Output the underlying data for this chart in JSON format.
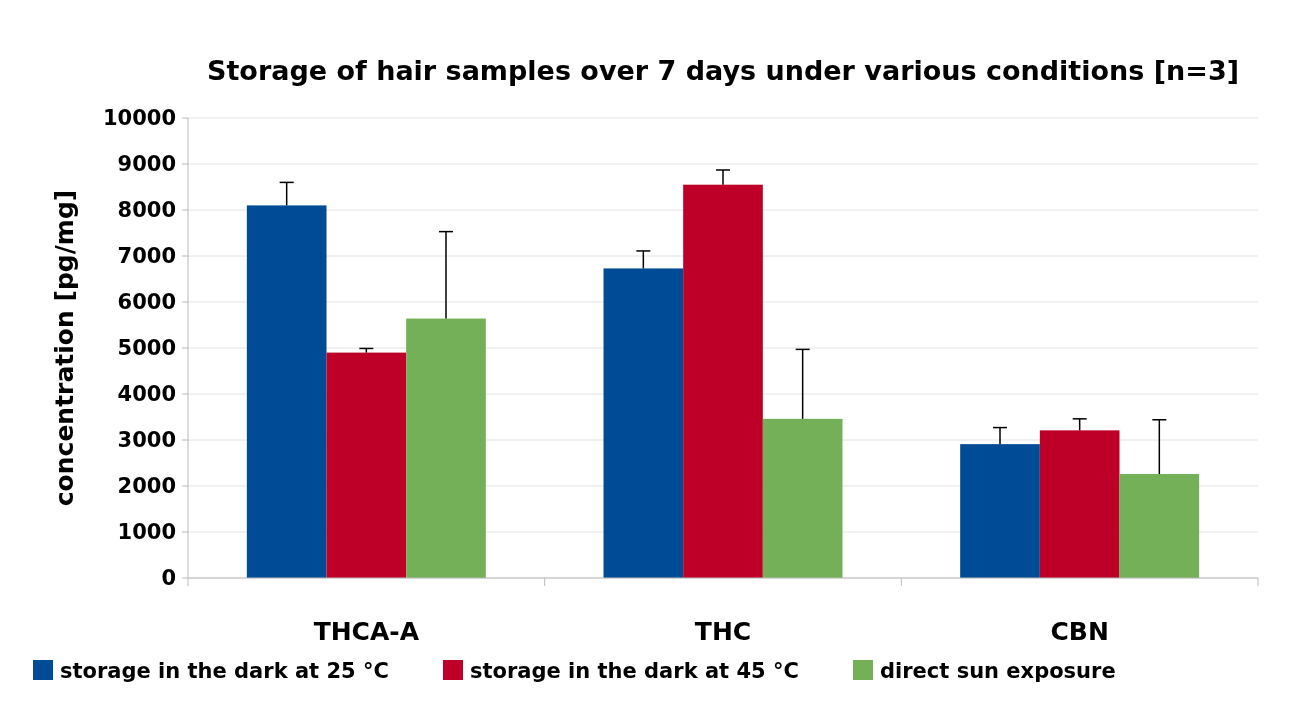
{
  "chart_data": {
    "type": "bar",
    "title": "Storage of hair samples over 7 days under various conditions [n=3]",
    "ylabel": "concentration [pg/mg]",
    "categories": [
      "THCA-A",
      "THC",
      "CBN"
    ],
    "series": [
      {
        "name": "storage in the dark at 25 °C",
        "color": "#004b96",
        "values": [
          8100,
          6730,
          2910
        ],
        "errors": [
          [
            8100,
            8600
          ],
          [
            6730,
            7110
          ],
          [
            2910,
            3270
          ]
        ]
      },
      {
        "name": "storage in the dark at 45 °C",
        "color": "#be0028",
        "values": [
          4900,
          8550,
          3210
        ],
        "errors": [
          [
            4900,
            4990
          ],
          [
            8550,
            8870
          ],
          [
            3210,
            3460
          ]
        ]
      },
      {
        "name": "direct sun exposure",
        "color": "#74b058",
        "values": [
          5640,
          3460,
          2260
        ],
        "errors": [
          [
            5640,
            7530
          ],
          [
            3460,
            4970
          ],
          [
            2260,
            3440
          ]
        ]
      }
    ],
    "ylim": [
      0,
      10000
    ],
    "yticks": [
      0,
      1000,
      2000,
      3000,
      4000,
      5000,
      6000,
      7000,
      8000,
      9000,
      10000
    ],
    "grid": "y",
    "legend": "bottom"
  }
}
